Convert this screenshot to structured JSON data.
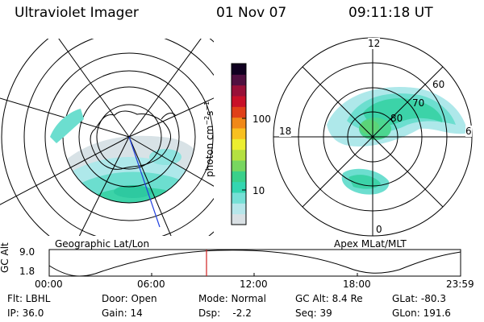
{
  "header": {
    "instrument": "Ultraviolet Imager",
    "date": "01 Nov 07",
    "time": "09:11:18 UT"
  },
  "left_panel": {
    "caption": "Geographic Lat/Lon"
  },
  "right_panel": {
    "caption": "Apex MLat/MLT",
    "mlt_labels": [
      "12",
      "18",
      "6",
      "0"
    ],
    "mlat_labels": [
      "60",
      "70",
      "80"
    ]
  },
  "colorbar": {
    "unit_label": "photon cm",
    "unit_exp1": "−2",
    "unit_mid": "s",
    "unit_exp2": "−1",
    "ticks": [
      "100",
      "10"
    ],
    "scale": "log",
    "colors": [
      "#d9e0e4",
      "#b6e6ea",
      "#76e0d6",
      "#34d6b0",
      "#3ad08a",
      "#78d660",
      "#b4e040",
      "#ecee30",
      "#f8c020",
      "#f08818",
      "#e04018",
      "#c81028",
      "#981038",
      "#501040",
      "#100020"
    ]
  },
  "altitude_plot": {
    "ylabel": "GC Alt",
    "yticks": [
      "9.0",
      "1.8"
    ],
    "xticks": [
      "00:00",
      "06:00",
      "12:00",
      "18:00",
      "23:59"
    ],
    "current_time_color": "#d02020"
  },
  "footer": {
    "filter": "Flt: LBHL",
    "ip": "IP: 36.0",
    "door": "Door: Open",
    "gain": "Gain: 14",
    "mode": "Mode: Normal",
    "dsp": "Dsp:    -2.2",
    "gc_alt": "GC Alt: 8.4 Re",
    "seq": "Seq: 39",
    "glat": "GLat: -80.3",
    "glon": "GLon: 191.6"
  }
}
